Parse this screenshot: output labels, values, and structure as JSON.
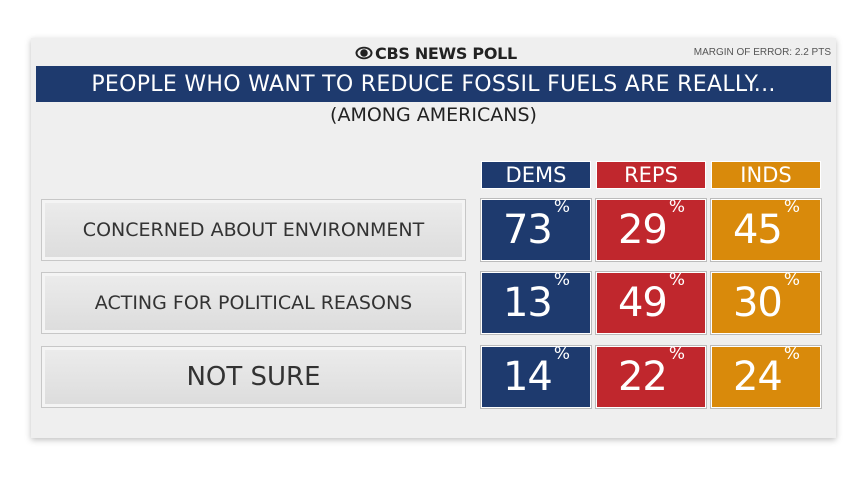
{
  "header": {
    "brand": "CBS NEWS POLL",
    "margin_of_error": "MARGIN OF ERROR: 2.2 PTS",
    "title": "PEOPLE WHO WANT TO REDUCE FOSSIL FUELS ARE REALLY...",
    "subtitle": "(AMONG AMERICANS)"
  },
  "colors": {
    "dems": "#1e3a6e",
    "reps": "#c0272d",
    "inds": "#d98a0b",
    "title_bar": "#1e3a6e"
  },
  "chart_data": {
    "type": "table",
    "title": "PEOPLE WHO WANT TO REDUCE FOSSIL FUELS ARE REALLY...",
    "subtitle": "(AMONG AMERICANS)",
    "columns": [
      "DEMS",
      "REPS",
      "INDS"
    ],
    "rows": [
      {
        "label": "CONCERNED ABOUT ENVIRONMENT",
        "values": [
          73,
          29,
          45
        ]
      },
      {
        "label": "ACTING FOR POLITICAL REASONS",
        "values": [
          13,
          49,
          30
        ]
      },
      {
        "label": "NOT SURE",
        "values": [
          14,
          22,
          24
        ]
      }
    ],
    "unit": "%"
  }
}
